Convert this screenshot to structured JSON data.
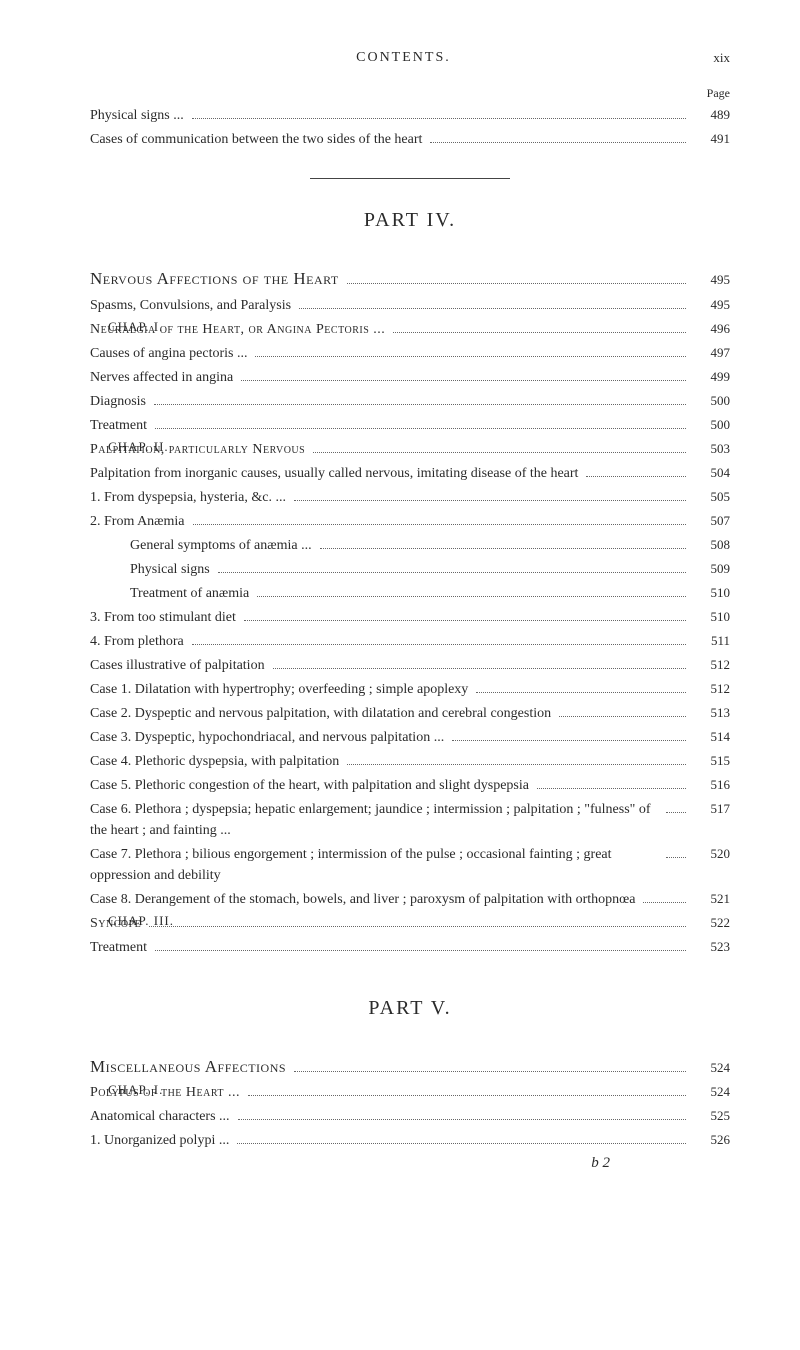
{
  "header": {
    "title": "CONTENTS.",
    "page_roman": "xix",
    "page_label": "Page"
  },
  "pre_lines": [
    {
      "text": "Physical signs ...",
      "page": "489",
      "indent": 0
    },
    {
      "text": "Cases of communication between the two sides of the heart",
      "page": "491",
      "indent": 0
    }
  ],
  "part4": {
    "title": "PART IV.",
    "section_title": "Nervous Affections of the Heart",
    "section_page": "495",
    "lines": [
      {
        "chap": "",
        "text": "Spasms, Convulsions, and Paralysis",
        "page": "495",
        "indent": 0,
        "sc": false
      },
      {
        "chap": "CHAP. I.",
        "text": "Neuralgia of the Heart, or Angina Pectoris ...",
        "page": "496",
        "indent": 0,
        "sc": true
      },
      {
        "chap": "",
        "text": "Causes of angina pectoris ...",
        "page": "497",
        "indent": 0,
        "sc": false
      },
      {
        "chap": "",
        "text": "Nerves affected in angina",
        "page": "499",
        "indent": 0,
        "sc": false
      },
      {
        "chap": "",
        "text": "Diagnosis",
        "page": "500",
        "indent": 0,
        "sc": false
      },
      {
        "chap": "",
        "text": "Treatment",
        "page": "500",
        "indent": 0,
        "sc": false
      },
      {
        "chap": "CHAP. II.",
        "text": "Palpitation, particularly Nervous",
        "page": "503",
        "indent": 0,
        "sc": true
      },
      {
        "chap": "",
        "text": "Palpitation from inorganic causes, usually called nervous, imitating disease of the heart",
        "page": "504",
        "indent": 0,
        "sc": false
      },
      {
        "chap": "",
        "text": "1. From dyspepsia, hysteria, &c. ...",
        "page": "505",
        "indent": 0,
        "sc": false
      },
      {
        "chap": "",
        "text": "2. From Anæmia",
        "page": "507",
        "indent": 0,
        "sc": false
      },
      {
        "chap": "",
        "text": "General symptoms of anæmia ...",
        "page": "508",
        "indent": 2,
        "sc": false
      },
      {
        "chap": "",
        "text": "Physical signs",
        "page": "509",
        "indent": 2,
        "sc": false
      },
      {
        "chap": "",
        "text": "Treatment of anæmia",
        "page": "510",
        "indent": 2,
        "sc": false
      },
      {
        "chap": "",
        "text": "3. From too stimulant diet",
        "page": "510",
        "indent": 0,
        "sc": false
      },
      {
        "chap": "",
        "text": "4. From plethora",
        "page": "511",
        "indent": 0,
        "sc": false
      },
      {
        "chap": "",
        "text": "Cases illustrative of palpitation",
        "page": "512",
        "indent": 0,
        "sc": false
      },
      {
        "chap": "",
        "text": "Case 1. Dilatation with hypertrophy; overfeeding ; simple apoplexy",
        "page": "512",
        "indent": 0,
        "sc": false
      },
      {
        "chap": "",
        "text": "Case 2. Dyspeptic and nervous palpitation, with dilatation and cerebral congestion",
        "page": "513",
        "indent": 0,
        "sc": false
      },
      {
        "chap": "",
        "text": "Case 3. Dyspeptic, hypochondriacal, and nervous palpitation ...",
        "page": "514",
        "indent": 0,
        "sc": false
      },
      {
        "chap": "",
        "text": "Case 4. Plethoric dyspepsia, with palpitation",
        "page": "515",
        "indent": 0,
        "sc": false
      },
      {
        "chap": "",
        "text": "Case 5. Plethoric congestion of the heart, with palpitation and slight dyspepsia",
        "page": "516",
        "indent": 0,
        "sc": false
      },
      {
        "chap": "",
        "text": "Case 6. Plethora ; dyspepsia; hepatic enlargement; jaundice ; intermission ; palpitation ; \"fulness\" of the heart ; and fainting ...",
        "page": "517",
        "indent": 0,
        "sc": false
      },
      {
        "chap": "",
        "text": "Case 7. Plethora ; bilious engorgement ; intermission of the pulse ; occasional fainting ; great oppression and debility",
        "page": "520",
        "indent": 0,
        "sc": false
      },
      {
        "chap": "",
        "text": "Case 8. Derangement of the stomach, bowels, and liver ; paroxysm of palpitation with orthopnœa",
        "page": "521",
        "indent": 0,
        "sc": false
      },
      {
        "chap": "CHAP. III.",
        "text": "Syncope",
        "page": "522",
        "indent": 0,
        "sc": true
      },
      {
        "chap": "",
        "text": "Treatment",
        "page": "523",
        "indent": 0,
        "sc": false
      }
    ]
  },
  "part5": {
    "title": "PART V.",
    "section_title": "Miscellaneous Affections",
    "section_page": "524",
    "lines": [
      {
        "chap": "CHAP. I.",
        "text": "Polypus of the Heart ...",
        "page": "524",
        "indent": 0,
        "sc": true
      },
      {
        "chap": "",
        "text": "Anatomical characters ...",
        "page": "525",
        "indent": 0,
        "sc": false
      },
      {
        "chap": "",
        "text": "1. Unorganized polypi ...",
        "page": "526",
        "indent": 0,
        "sc": false
      }
    ],
    "signature": "b 2"
  }
}
